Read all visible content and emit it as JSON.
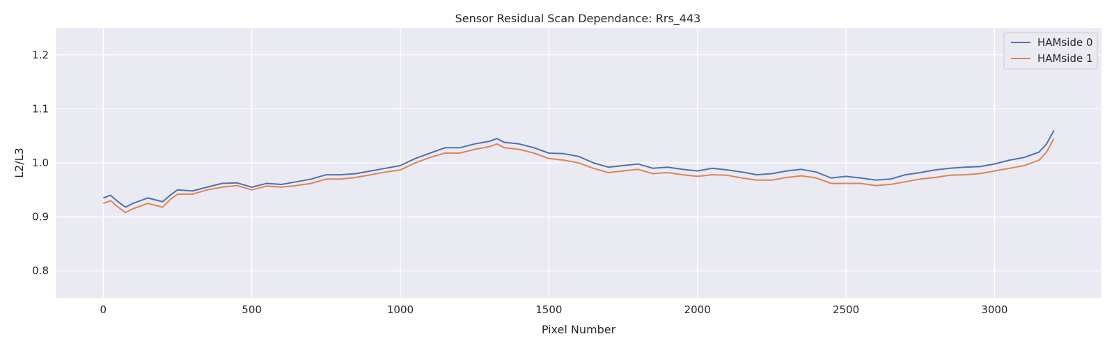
{
  "chart_data": {
    "type": "line",
    "title": "Sensor Residual Scan Dependance: Rrs_443",
    "xlabel": "Pixel Number",
    "ylabel": "L2/L3",
    "xlim": [
      -160,
      3360
    ],
    "ylim": [
      0.75,
      1.25
    ],
    "xticks": [
      0,
      500,
      1000,
      1500,
      2000,
      2500,
      3000
    ],
    "yticks": [
      0.8,
      0.9,
      1.0,
      1.1,
      1.2
    ],
    "xtick_labels": [
      "0",
      "500",
      "1000",
      "1500",
      "2000",
      "2500",
      "3000"
    ],
    "ytick_labels": [
      "0.8",
      "0.9",
      "1.0",
      "1.1",
      "1.2"
    ],
    "grid": true,
    "legend_position": "top-right",
    "background": "#eaeaf2",
    "x": [
      0,
      25,
      50,
      75,
      100,
      150,
      200,
      225,
      250,
      300,
      350,
      400,
      450,
      500,
      550,
      600,
      650,
      700,
      750,
      800,
      850,
      900,
      950,
      1000,
      1050,
      1100,
      1150,
      1200,
      1250,
      1300,
      1325,
      1350,
      1400,
      1450,
      1500,
      1550,
      1600,
      1650,
      1700,
      1750,
      1800,
      1850,
      1900,
      1950,
      2000,
      2050,
      2100,
      2150,
      2200,
      2250,
      2300,
      2350,
      2400,
      2450,
      2500,
      2550,
      2600,
      2650,
      2700,
      2750,
      2800,
      2850,
      2900,
      2950,
      3000,
      3050,
      3100,
      3150,
      3175,
      3200
    ],
    "series": [
      {
        "name": "HAMside 0",
        "color": "#4c72b0",
        "values": [
          0.935,
          0.94,
          0.928,
          0.918,
          0.925,
          0.935,
          0.928,
          0.94,
          0.95,
          0.948,
          0.955,
          0.962,
          0.963,
          0.955,
          0.962,
          0.96,
          0.965,
          0.97,
          0.978,
          0.978,
          0.98,
          0.985,
          0.99,
          0.995,
          1.008,
          1.018,
          1.028,
          1.028,
          1.035,
          1.04,
          1.045,
          1.038,
          1.035,
          1.028,
          1.018,
          1.017,
          1.012,
          1.0,
          0.992,
          0.995,
          0.998,
          0.99,
          0.992,
          0.988,
          0.985,
          0.99,
          0.987,
          0.983,
          0.978,
          0.98,
          0.985,
          0.988,
          0.983,
          0.972,
          0.975,
          0.972,
          0.968,
          0.97,
          0.978,
          0.982,
          0.987,
          0.99,
          0.992,
          0.993,
          0.998,
          1.005,
          1.01,
          1.02,
          1.035,
          1.06
        ]
      },
      {
        "name": "HAMside 1",
        "color": "#dd8452",
        "values": [
          0.925,
          0.93,
          0.918,
          0.908,
          0.915,
          0.925,
          0.918,
          0.932,
          0.942,
          0.942,
          0.95,
          0.955,
          0.958,
          0.95,
          0.957,
          0.955,
          0.958,
          0.962,
          0.97,
          0.97,
          0.973,
          0.978,
          0.983,
          0.987,
          1.0,
          1.01,
          1.018,
          1.018,
          1.025,
          1.03,
          1.035,
          1.028,
          1.025,
          1.018,
          1.008,
          1.005,
          1.0,
          0.99,
          0.982,
          0.985,
          0.988,
          0.98,
          0.982,
          0.978,
          0.975,
          0.978,
          0.977,
          0.972,
          0.968,
          0.968,
          0.973,
          0.976,
          0.972,
          0.962,
          0.962,
          0.962,
          0.958,
          0.96,
          0.965,
          0.97,
          0.973,
          0.977,
          0.978,
          0.98,
          0.985,
          0.99,
          0.995,
          1.005,
          1.02,
          1.045
        ]
      }
    ]
  }
}
